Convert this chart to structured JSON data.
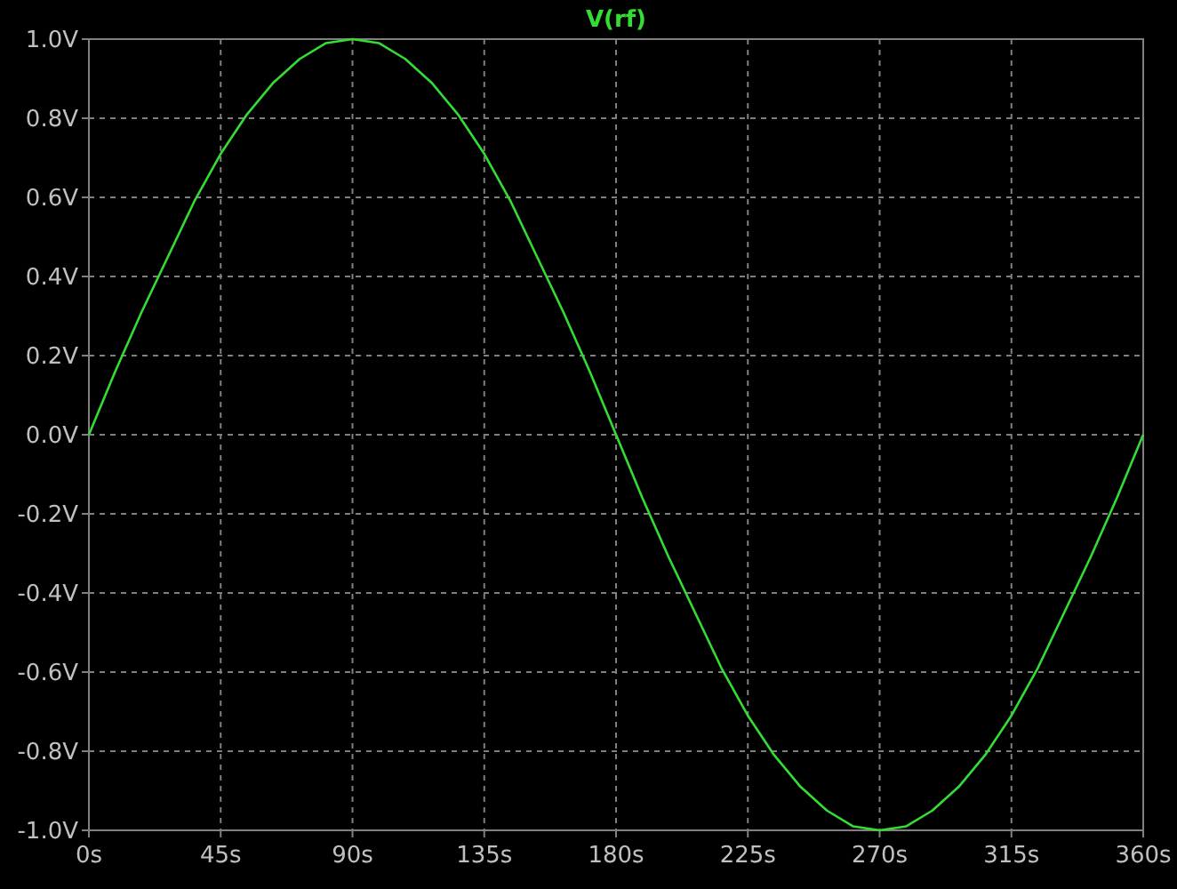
{
  "chart_data": {
    "type": "line",
    "x": [
      0,
      9,
      18,
      27,
      36,
      45,
      54,
      63,
      72,
      81,
      90,
      99,
      108,
      117,
      126,
      135,
      144,
      153,
      162,
      171,
      180,
      189,
      198,
      207,
      216,
      225,
      234,
      243,
      252,
      261,
      270,
      279,
      288,
      297,
      306,
      315,
      324,
      333,
      342,
      351,
      360
    ],
    "series": [
      {
        "name": "V(rf)",
        "color": "#33dd33",
        "values": [
          0,
          0.16,
          0.31,
          0.45,
          0.59,
          0.71,
          0.81,
          0.89,
          0.95,
          0.99,
          1.0,
          0.99,
          0.95,
          0.89,
          0.81,
          0.71,
          0.59,
          0.45,
          0.31,
          0.16,
          0,
          -0.16,
          -0.31,
          -0.45,
          -0.59,
          -0.71,
          -0.81,
          -0.89,
          -0.95,
          -0.99,
          -1.0,
          -0.99,
          -0.95,
          -0.89,
          -0.81,
          -0.71,
          -0.59,
          -0.45,
          -0.31,
          -0.16,
          0
        ]
      }
    ],
    "xlim": [
      0,
      360
    ],
    "ylim": [
      -1,
      1
    ],
    "xticks": [
      {
        "value": 0,
        "label": "0s"
      },
      {
        "value": 45,
        "label": "45s"
      },
      {
        "value": 90,
        "label": "90s"
      },
      {
        "value": 135,
        "label": "135s"
      },
      {
        "value": 180,
        "label": "180s"
      },
      {
        "value": 225,
        "label": "225s"
      },
      {
        "value": 270,
        "label": "270s"
      },
      {
        "value": 315,
        "label": "315s"
      },
      {
        "value": 360,
        "label": "360s"
      }
    ],
    "yticks": [
      {
        "value": -1,
        "label": "-1.0V"
      },
      {
        "value": -0.8,
        "label": "-0.8V"
      },
      {
        "value": -0.6,
        "label": "-0.6V"
      },
      {
        "value": -0.4,
        "label": "-0.4V"
      },
      {
        "value": -0.2,
        "label": "-0.2V"
      },
      {
        "value": 0,
        "label": "0.0V"
      },
      {
        "value": 0.2,
        "label": "0.2V"
      },
      {
        "value": 0.4,
        "label": "0.4V"
      },
      {
        "value": 0.6,
        "label": "0.6V"
      },
      {
        "value": 0.8,
        "label": "0.8V"
      },
      {
        "value": 1,
        "label": "1.0V"
      }
    ],
    "grid": true,
    "legend": "top",
    "marker": "none",
    "line_style": "solid"
  }
}
